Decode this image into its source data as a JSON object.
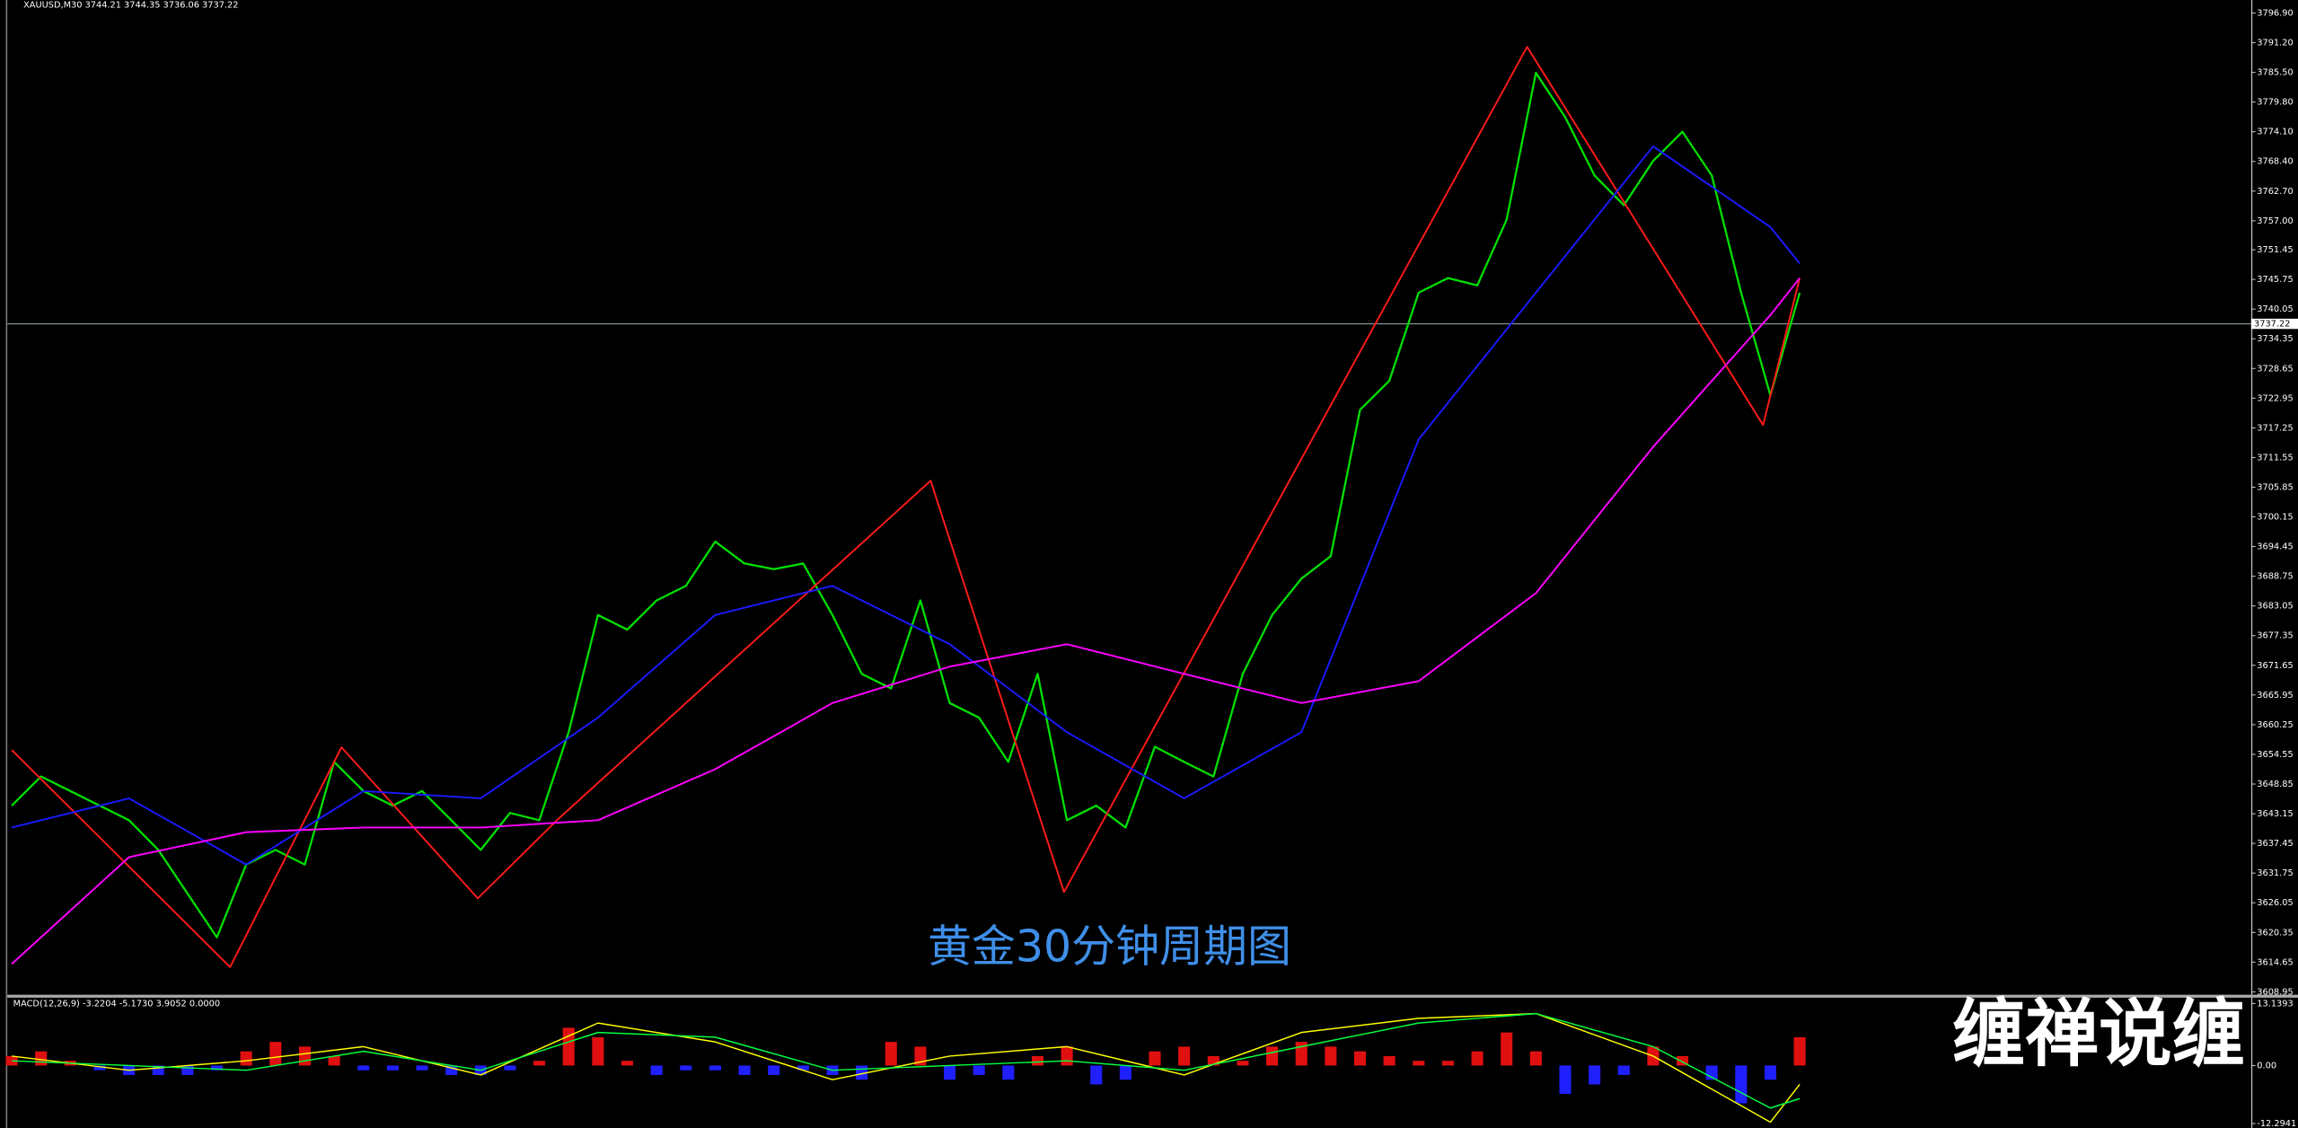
{
  "chart_data": {
    "type": "line",
    "subtitle": "XAUUSD,M30  3744.21 3744.35 3736.06 3737.22",
    "annotation": "黄金30分钟周期图",
    "brand": "缠禅说缠",
    "ylim": [
      3608.4,
      3799.4
    ],
    "yticks": [
      {
        "value": 3796.9,
        "label": "3796.90"
      },
      {
        "value": 3791.2,
        "label": "3791.20"
      },
      {
        "value": 3785.5,
        "label": "3785.50"
      },
      {
        "value": 3779.8,
        "label": "3779.80"
      },
      {
        "value": 3774.1,
        "label": "3774.10"
      },
      {
        "value": 3768.4,
        "label": "3768.40"
      },
      {
        "value": 3762.7,
        "label": "3762.70"
      },
      {
        "value": 3757,
        "label": "3757.00"
      },
      3751.45,
      3745.75,
      {
        "value": 3740.05,
        "label": "3740.05"
      },
      3734.35,
      3728.65,
      3722.95,
      3717.25,
      3711.55,
      3705.85,
      3700.15,
      3694.45,
      3688.75,
      3683.05,
      3677.35,
      3671.65,
      3665.95,
      3660.25,
      3654.55,
      3648.85,
      3643.15,
      3637.45,
      3631.75,
      3626.05,
      3620.35,
      3614.65,
      3608.95
    ],
    "last_price": 3737.22,
    "last_price_color": "#8c9aa0",
    "series": [
      {
        "color": "#00e000",
        "values": [
          3644.7,
          3650.3,
          3647.5,
          3644.7,
          3641.9,
          3636.2,
          3627.8,
          3619.4,
          3633.4,
          3636.2,
          3633.4,
          3653.1,
          3647.5,
          3644.7,
          3647.5,
          3641.9,
          3636.2,
          3643.3,
          3641.9,
          3658.8,
          3681.3,
          3678.5,
          3684.1,
          3686.9,
          3695.4,
          3691.2,
          3690.1,
          3691.2,
          3681.3,
          3670.0,
          3667.2,
          3684.1,
          3664.4,
          3661.6,
          3653.1,
          3670.0,
          3641.9,
          3644.7,
          3640.5,
          3656.0,
          3653.1,
          3650.3,
          3670.0,
          3681.3,
          3688.3,
          3692.6,
          3720.7,
          3726.3,
          3743.2,
          3746.0,
          3744.6,
          3757.2,
          3785.4,
          3776.9,
          3765.7,
          3760.0,
          3768.5,
          3774.1,
          3765.7,
          3743.2,
          3723.5,
          3743.2
        ]
      },
      {
        "color": "#ff1a1a",
        "x": [
          0,
          7.45,
          11.25,
          15.9,
          18.6,
          31.35,
          35.9,
          51.7,
          59.75,
          61
        ],
        "values": [
          3655.4,
          3613.7,
          3655.9,
          3626.9,
          3641.9,
          3707.1,
          3628.1,
          3790.4,
          3717.8,
          3746.0
        ]
      },
      {
        "color": "#1a1aff",
        "x": [
          0,
          4,
          8,
          12,
          16,
          20,
          24,
          28,
          32,
          36,
          40,
          44,
          48,
          52,
          56,
          60,
          61
        ],
        "values": [
          3640.5,
          3646.1,
          3633.4,
          3647.5,
          3646.1,
          3661.6,
          3681.3,
          3686.9,
          3675.7,
          3658.8,
          3646.1,
          3658.8,
          3715.0,
          3743.2,
          3771.3,
          3755.8,
          3748.8
        ]
      },
      {
        "color": "#ff00ff",
        "x": [
          0,
          4,
          8,
          12,
          16,
          20,
          24,
          28,
          32,
          36,
          40,
          44,
          48,
          52,
          56,
          60,
          61
        ],
        "values": [
          3614.3,
          3634.8,
          3639.6,
          3640.5,
          3640.5,
          3641.9,
          3651.7,
          3664.4,
          3671.4,
          3675.7,
          3670.0,
          3664.4,
          3668.6,
          3685.5,
          3713.6,
          3738.9,
          3746.0
        ]
      }
    ],
    "macd": {
      "title": "MACD(12,26,9) -3.2204 -5.1730 3.9052 0.0000",
      "ylim": [
        -13.23,
        14.38
      ],
      "yticks": [
        13.1393,
        {
          "value": 0,
          "label": "0.00"
        },
        -12.2941
      ],
      "up_color": "#e01010",
      "down_color": "#2020ff",
      "histogram": [
        2,
        3,
        1,
        -1,
        -2,
        -2,
        -2,
        -1,
        3,
        5,
        4,
        2,
        -1,
        -1,
        -1,
        -2,
        -2,
        -1,
        1,
        8,
        6,
        1,
        -2,
        -1,
        -1,
        -2,
        -2,
        -1,
        -2,
        -3,
        5,
        4,
        -3,
        -2,
        -3,
        2,
        4,
        -4,
        -3,
        3,
        4,
        2,
        1,
        4,
        5,
        4,
        3,
        2,
        1,
        1,
        3,
        7,
        3,
        -6,
        -4,
        -2,
        4,
        2,
        -3,
        -8,
        -3,
        6
      ],
      "lines": [
        {
          "color": "#ffff00",
          "x": [
            0,
            4,
            8,
            12,
            16,
            20,
            24,
            28,
            32,
            36,
            40,
            44,
            48,
            52,
            56,
            60,
            61
          ],
          "values": [
            2,
            -1,
            1,
            4,
            -2,
            9,
            5,
            -3,
            2,
            4,
            -2,
            7,
            10,
            11,
            2,
            -12,
            -4
          ]
        },
        {
          "color": "#00ff40",
          "x": [
            0,
            4,
            8,
            12,
            16,
            20,
            24,
            28,
            32,
            36,
            40,
            44,
            48,
            52,
            56,
            60,
            61
          ],
          "values": [
            1,
            0,
            -1,
            3,
            -1,
            7,
            6,
            -1,
            0,
            1,
            -1,
            4,
            9,
            11,
            4,
            -9,
            -7
          ]
        }
      ]
    }
  }
}
